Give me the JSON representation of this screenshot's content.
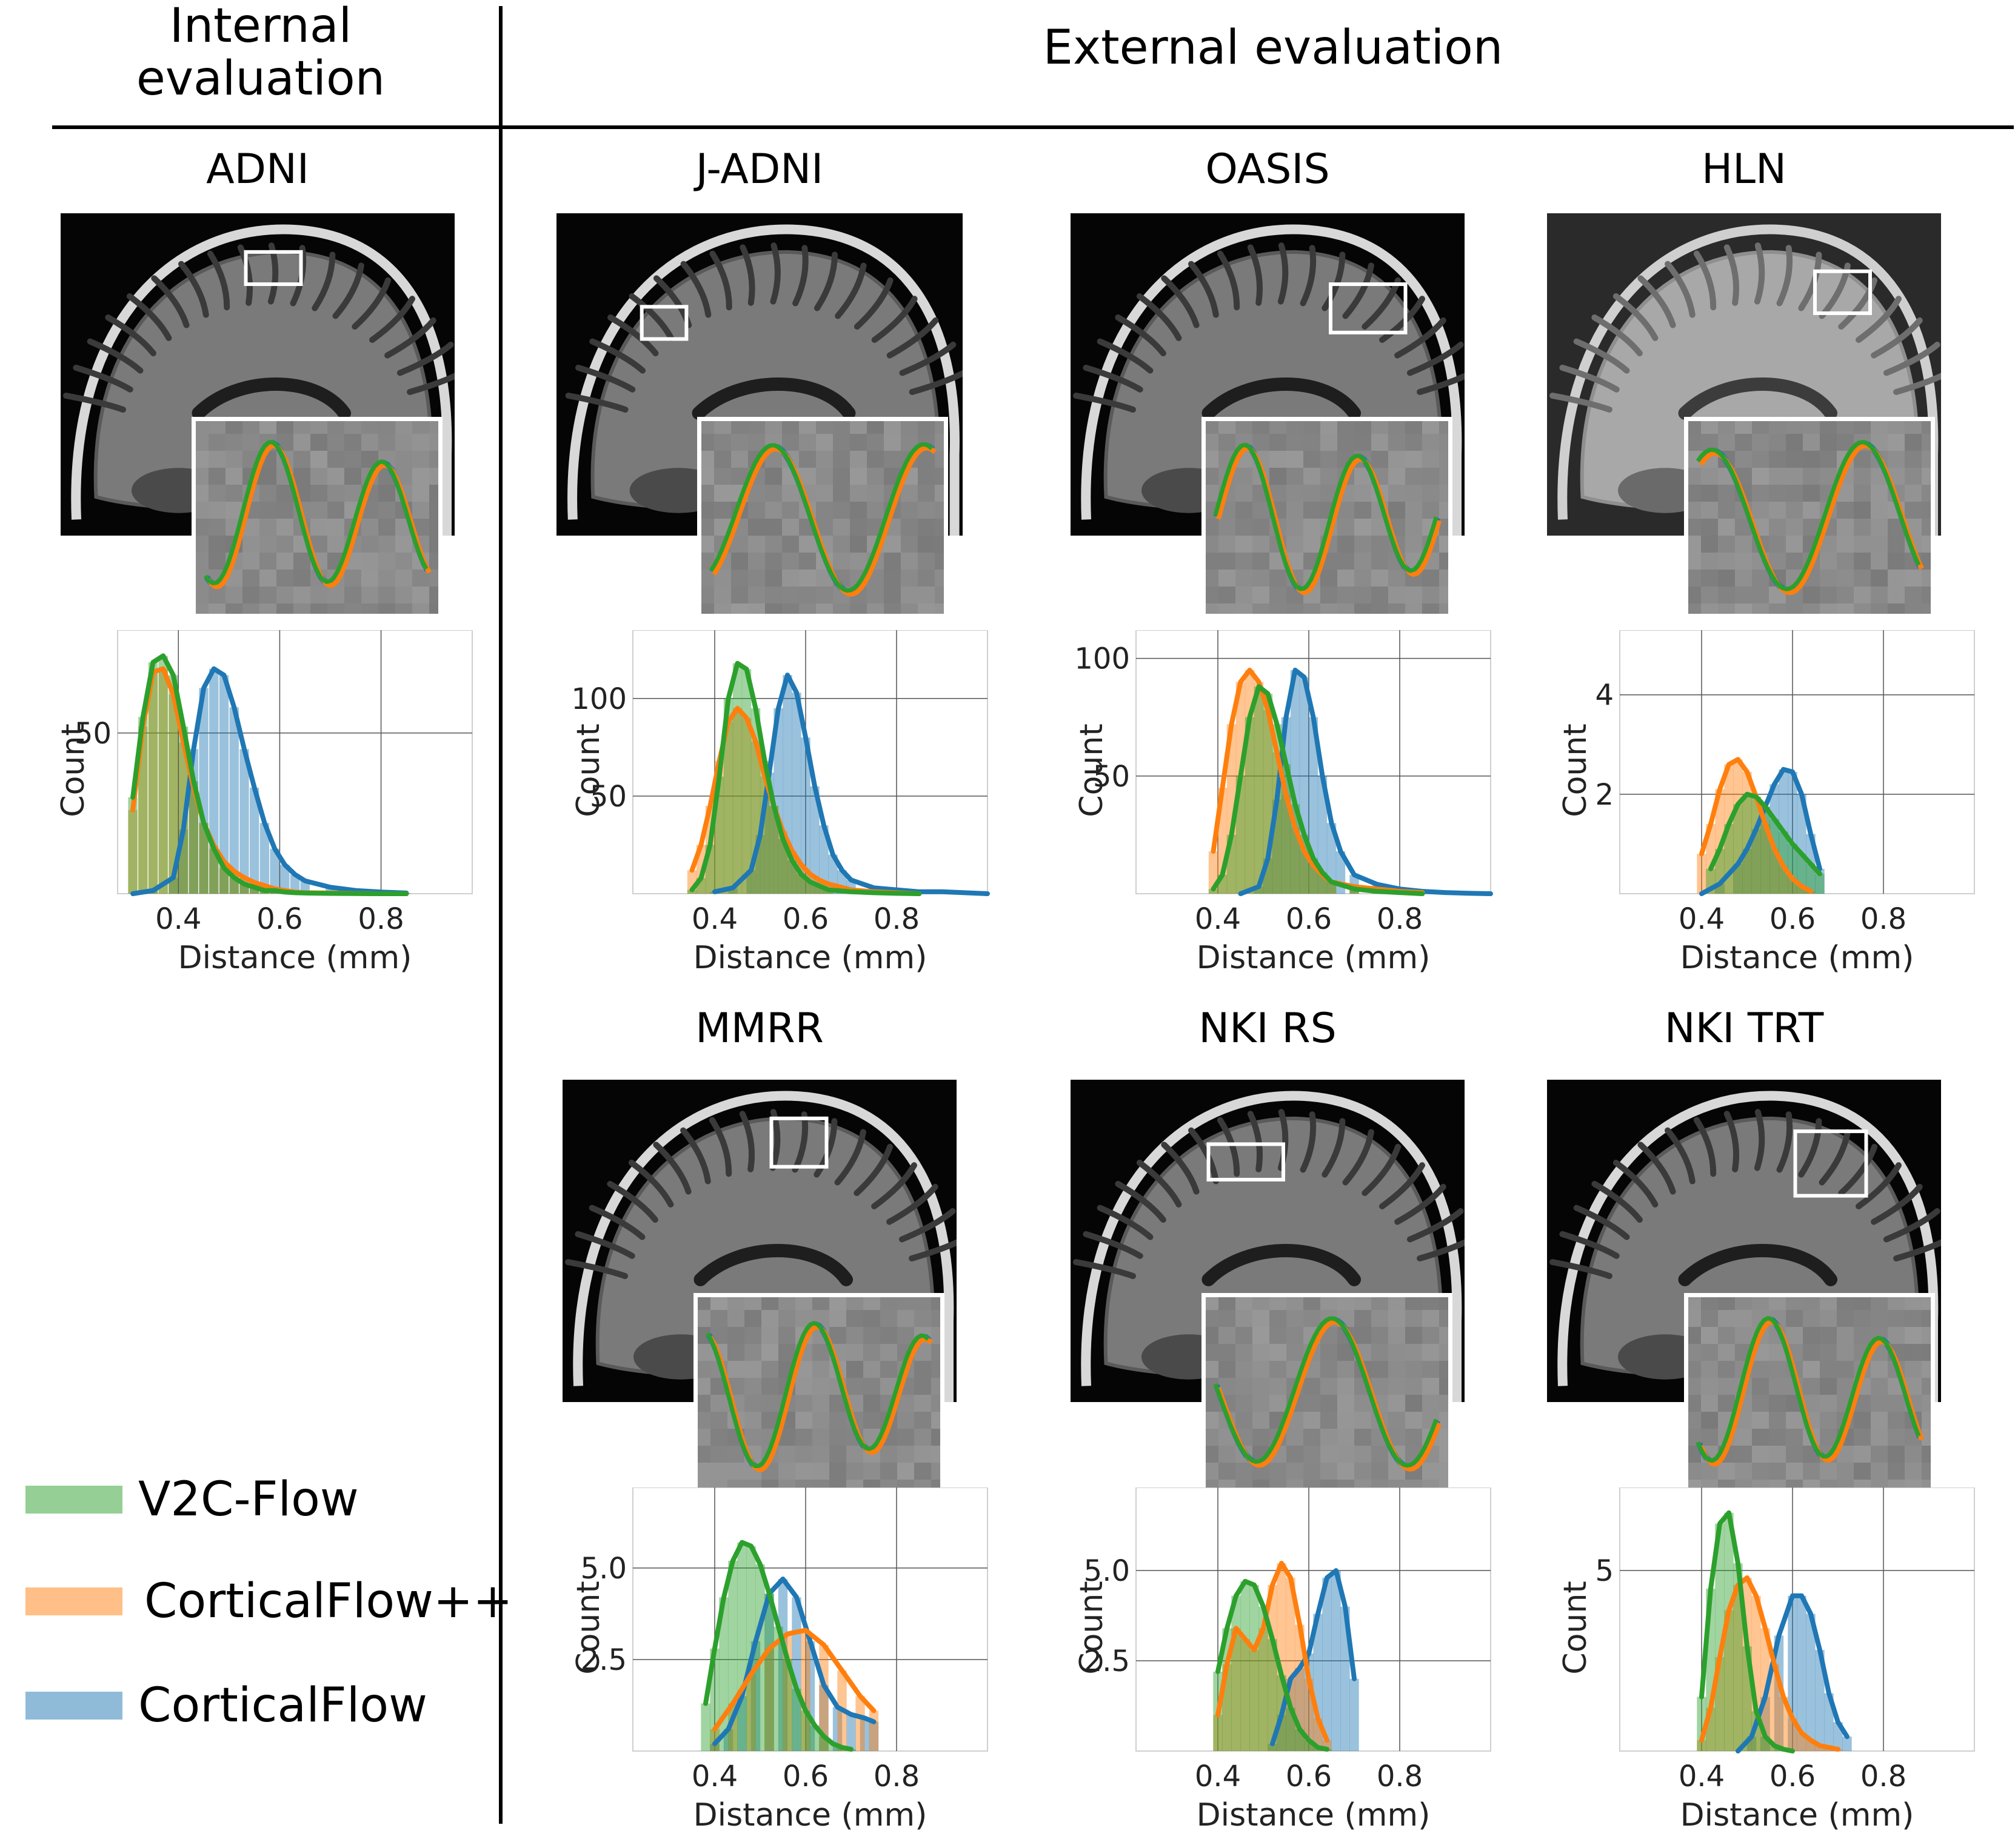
{
  "headers": {
    "internal": "Internal\nevaluation",
    "external": "External evaluation"
  },
  "legend": [
    {
      "name": "V2C-Flow",
      "color": "#2ca02c"
    },
    {
      "name": "CorticalFlow++",
      "color": "#ff7f0e"
    },
    {
      "name": "CorticalFlow",
      "color": "#1f77b4"
    }
  ],
  "chart_data": [
    {
      "type": "bar",
      "title": "ADNI",
      "xlabel": "Distance (mm)",
      "ylabel": "Count",
      "xlim": [
        0.28,
        0.98
      ],
      "ylim": [
        0,
        82
      ],
      "xticks": [
        0.4,
        0.6,
        0.8
      ],
      "yticks": [
        50
      ],
      "grid": true,
      "series": [
        {
          "name": "V2C-Flow",
          "x": [
            0.31,
            0.33,
            0.35,
            0.37,
            0.39,
            0.41,
            0.43,
            0.45,
            0.47,
            0.49,
            0.51,
            0.53,
            0.55,
            0.57,
            0.59,
            0.61,
            0.63,
            0.65,
            0.7,
            0.75,
            0.8,
            0.85
          ],
          "values": [
            30,
            55,
            72,
            74,
            68,
            52,
            35,
            22,
            14,
            8,
            5,
            3,
            2,
            1,
            1,
            0.5,
            0.3,
            0.2,
            0.1,
            0.05,
            0,
            0
          ]
        },
        {
          "name": "CorticalFlow++",
          "x": [
            0.31,
            0.33,
            0.35,
            0.37,
            0.39,
            0.41,
            0.43,
            0.45,
            0.47,
            0.49,
            0.51,
            0.53,
            0.55,
            0.57,
            0.59,
            0.61,
            0.63,
            0.65,
            0.7,
            0.75,
            0.8,
            0.85
          ],
          "values": [
            26,
            52,
            69,
            70,
            62,
            47,
            33,
            22,
            15,
            10,
            7,
            5,
            3.5,
            2.5,
            1.5,
            1,
            0.5,
            0.3,
            0.2,
            0.1,
            0,
            0
          ]
        },
        {
          "name": "CorticalFlow",
          "x": [
            0.31,
            0.35,
            0.39,
            0.41,
            0.43,
            0.45,
            0.47,
            0.49,
            0.51,
            0.53,
            0.55,
            0.57,
            0.59,
            0.61,
            0.63,
            0.65,
            0.7,
            0.75,
            0.8,
            0.85
          ],
          "values": [
            0,
            1,
            5,
            20,
            45,
            64,
            70,
            68,
            58,
            45,
            33,
            22,
            14,
            9,
            6,
            4,
            2,
            1,
            0.5,
            0.2
          ]
        }
      ]
    },
    {
      "type": "bar",
      "title": "J-ADNI",
      "xlabel": "Distance (mm)",
      "ylabel": "Count",
      "xlim": [
        0.22,
        1.0
      ],
      "ylim": [
        0,
        135
      ],
      "xticks": [
        0.4,
        0.6,
        0.8
      ],
      "yticks": [
        50,
        100
      ],
      "grid": true,
      "series": [
        {
          "name": "V2C-Flow",
          "x": [
            0.35,
            0.37,
            0.39,
            0.41,
            0.43,
            0.45,
            0.47,
            0.49,
            0.51,
            0.53,
            0.55,
            0.57,
            0.59,
            0.61,
            0.63,
            0.65,
            0.7,
            0.75,
            0.8,
            0.85
          ],
          "values": [
            2,
            8,
            25,
            60,
            100,
            118,
            115,
            95,
            68,
            45,
            28,
            17,
            10,
            6,
            4,
            2,
            1,
            0.5,
            0.2,
            0
          ]
        },
        {
          "name": "CorticalFlow++",
          "x": [
            0.35,
            0.37,
            0.39,
            0.41,
            0.43,
            0.45,
            0.47,
            0.49,
            0.51,
            0.53,
            0.55,
            0.57,
            0.59,
            0.61,
            0.63,
            0.65,
            0.7,
            0.75,
            0.8,
            0.85
          ],
          "values": [
            12,
            25,
            45,
            68,
            88,
            95,
            90,
            78,
            60,
            45,
            32,
            22,
            15,
            10,
            7,
            5,
            2,
            1,
            0.5,
            0
          ]
        },
        {
          "name": "CorticalFlow",
          "x": [
            0.4,
            0.44,
            0.48,
            0.5,
            0.52,
            0.54,
            0.56,
            0.58,
            0.6,
            0.62,
            0.64,
            0.66,
            0.68,
            0.7,
            0.75,
            0.8,
            0.85,
            0.9,
            0.95,
            1.0
          ],
          "values": [
            1,
            3,
            12,
            30,
            62,
            95,
            112,
            103,
            80,
            55,
            35,
            20,
            12,
            7,
            3,
            2,
            1,
            1,
            0.5,
            0
          ]
        }
      ]
    },
    {
      "type": "bar",
      "title": "OASIS",
      "xlabel": "Distance (mm)",
      "ylabel": "Count",
      "xlim": [
        0.22,
        1.0
      ],
      "ylim": [
        0,
        112
      ],
      "xticks": [
        0.4,
        0.6,
        0.8
      ],
      "yticks": [
        50,
        100
      ],
      "grid": true,
      "series": [
        {
          "name": "V2C-Flow",
          "x": [
            0.39,
            0.41,
            0.43,
            0.45,
            0.47,
            0.49,
            0.51,
            0.53,
            0.55,
            0.57,
            0.59,
            0.61,
            0.63,
            0.65,
            0.7,
            0.75,
            0.8,
            0.85
          ],
          "values": [
            2,
            8,
            25,
            50,
            75,
            88,
            85,
            72,
            55,
            38,
            25,
            15,
            9,
            5,
            2,
            1,
            0.5,
            0
          ]
        },
        {
          "name": "CorticalFlow++",
          "x": [
            0.39,
            0.41,
            0.43,
            0.45,
            0.47,
            0.49,
            0.51,
            0.53,
            0.55,
            0.57,
            0.59,
            0.61,
            0.63,
            0.65,
            0.7,
            0.75,
            0.8,
            0.85
          ],
          "values": [
            18,
            45,
            72,
            90,
            95,
            90,
            78,
            60,
            42,
            28,
            18,
            12,
            8,
            5,
            3,
            2,
            1,
            0.5
          ]
        },
        {
          "name": "CorticalFlow",
          "x": [
            0.45,
            0.49,
            0.51,
            0.53,
            0.55,
            0.57,
            0.59,
            0.61,
            0.63,
            0.65,
            0.67,
            0.7,
            0.75,
            0.8,
            0.85,
            0.9,
            0.95,
            1.0
          ],
          "values": [
            0,
            3,
            15,
            40,
            75,
            95,
            92,
            75,
            50,
            30,
            18,
            8,
            4,
            2,
            1,
            0.5,
            0.2,
            0
          ]
        }
      ]
    },
    {
      "type": "bar",
      "title": "HLN",
      "xlabel": "Distance (mm)",
      "ylabel": "Count",
      "xlim": [
        0.22,
        1.0
      ],
      "ylim": [
        0,
        5.3
      ],
      "xticks": [
        0.4,
        0.6,
        0.8
      ],
      "yticks": [
        2,
        4
      ],
      "grid": true,
      "series": [
        {
          "name": "V2C-Flow",
          "x": [
            0.42,
            0.44,
            0.46,
            0.48,
            0.5,
            0.52,
            0.54,
            0.56,
            0.58,
            0.6,
            0.62,
            0.64,
            0.66
          ],
          "values": [
            0.5,
            0.9,
            1.4,
            1.8,
            2.0,
            1.95,
            1.75,
            1.5,
            1.25,
            1.0,
            0.8,
            0.6,
            0.4
          ]
        },
        {
          "name": "CorticalFlow++",
          "x": [
            0.4,
            0.42,
            0.44,
            0.46,
            0.48,
            0.5,
            0.52,
            0.54,
            0.56,
            0.58,
            0.6,
            0.62,
            0.64
          ],
          "values": [
            0.8,
            1.4,
            2.1,
            2.6,
            2.7,
            2.45,
            1.95,
            1.4,
            0.9,
            0.55,
            0.3,
            0.15,
            0.05
          ]
        },
        {
          "name": "CorticalFlow",
          "x": [
            0.4,
            0.44,
            0.48,
            0.5,
            0.52,
            0.54,
            0.56,
            0.58,
            0.6,
            0.62,
            0.64,
            0.66
          ],
          "values": [
            0,
            0.2,
            0.6,
            0.9,
            1.3,
            1.75,
            2.2,
            2.5,
            2.45,
            2.0,
            1.2,
            0.5
          ]
        }
      ]
    },
    {
      "type": "bar",
      "title": "MMRR",
      "xlabel": "Distance (mm)",
      "ylabel": "Count",
      "xlim": [
        0.22,
        1.0
      ],
      "ylim": [
        0,
        7.2
      ],
      "xticks": [
        0.4,
        0.6,
        0.8
      ],
      "yticks": [
        2.5,
        5.0
      ],
      "grid": true,
      "series": [
        {
          "name": "V2C-Flow",
          "x": [
            0.38,
            0.4,
            0.42,
            0.44,
            0.46,
            0.48,
            0.5,
            0.52,
            0.54,
            0.56,
            0.58,
            0.6,
            0.62,
            0.64,
            0.66,
            0.68,
            0.7
          ],
          "values": [
            1.3,
            2.8,
            4.2,
            5.2,
            5.7,
            5.6,
            5.1,
            4.3,
            3.4,
            2.5,
            1.7,
            1.1,
            0.7,
            0.4,
            0.2,
            0.1,
            0.05
          ]
        },
        {
          "name": "CorticalFlow++",
          "x": [
            0.4,
            0.44,
            0.48,
            0.52,
            0.56,
            0.6,
            0.64,
            0.68,
            0.72,
            0.75
          ],
          "values": [
            0.6,
            1.3,
            2.1,
            2.8,
            3.2,
            3.3,
            2.9,
            2.2,
            1.5,
            1.1
          ]
        },
        {
          "name": "CorticalFlow",
          "x": [
            0.4,
            0.43,
            0.46,
            0.49,
            0.52,
            0.55,
            0.58,
            0.61,
            0.64,
            0.67,
            0.7,
            0.73,
            0.75
          ],
          "values": [
            0.2,
            0.6,
            1.5,
            3.0,
            4.3,
            4.7,
            4.2,
            3.0,
            1.8,
            1.2,
            1.0,
            0.9,
            0.8
          ]
        }
      ]
    },
    {
      "type": "bar",
      "title": "NKI RS",
      "xlabel": "Distance (mm)",
      "ylabel": "Count",
      "xlim": [
        0.22,
        1.0
      ],
      "ylim": [
        0,
        7.3
      ],
      "xticks": [
        0.4,
        0.6,
        0.8
      ],
      "yticks": [
        2.5,
        5.0
      ],
      "grid": true,
      "series": [
        {
          "name": "V2C-Flow",
          "x": [
            0.4,
            0.42,
            0.44,
            0.46,
            0.48,
            0.5,
            0.52,
            0.54,
            0.56,
            0.58,
            0.6,
            0.62,
            0.64
          ],
          "values": [
            2.2,
            3.4,
            4.3,
            4.7,
            4.6,
            4.0,
            3.1,
            2.1,
            1.2,
            0.6,
            0.3,
            0.1,
            0.05
          ]
        },
        {
          "name": "CorticalFlow++",
          "x": [
            0.4,
            0.42,
            0.44,
            0.46,
            0.48,
            0.5,
            0.52,
            0.54,
            0.56,
            0.58,
            0.6,
            0.62,
            0.64
          ],
          "values": [
            1.0,
            2.4,
            3.4,
            3.1,
            2.8,
            3.4,
            4.6,
            5.2,
            4.8,
            3.5,
            2.0,
            0.9,
            0.3
          ]
        },
        {
          "name": "CorticalFlow",
          "x": [
            0.52,
            0.54,
            0.56,
            0.58,
            0.6,
            0.62,
            0.64,
            0.66,
            0.68,
            0.7
          ],
          "values": [
            0.2,
            1.0,
            2.0,
            2.3,
            2.7,
            3.8,
            4.8,
            5.0,
            4.0,
            2.0
          ]
        }
      ]
    },
    {
      "type": "bar",
      "title": "NKI TRT",
      "xlabel": "Distance (mm)",
      "ylabel": "Count",
      "xlim": [
        0.22,
        1.0
      ],
      "ylim": [
        0,
        7.3
      ],
      "xticks": [
        0.4,
        0.6,
        0.8
      ],
      "yticks": [
        5
      ],
      "grid": true,
      "series": [
        {
          "name": "V2C-Flow",
          "x": [
            0.4,
            0.42,
            0.44,
            0.46,
            0.48,
            0.5,
            0.52,
            0.54,
            0.56,
            0.58,
            0.6
          ],
          "values": [
            1.5,
            4.5,
            6.3,
            6.6,
            5.2,
            2.9,
            1.1,
            0.4,
            0.15,
            0.05,
            0
          ]
        },
        {
          "name": "CorticalFlow++",
          "x": [
            0.4,
            0.42,
            0.44,
            0.46,
            0.48,
            0.5,
            0.52,
            0.54,
            0.56,
            0.58,
            0.6,
            0.62,
            0.64,
            0.66,
            0.68,
            0.7
          ],
          "values": [
            0.3,
            1.2,
            2.6,
            3.9,
            4.6,
            4.8,
            4.3,
            3.4,
            2.4,
            1.5,
            0.9,
            0.5,
            0.3,
            0.15,
            0.1,
            0.05
          ]
        },
        {
          "name": "CorticalFlow",
          "x": [
            0.48,
            0.51,
            0.54,
            0.57,
            0.6,
            0.62,
            0.64,
            0.66,
            0.68,
            0.7,
            0.72
          ],
          "values": [
            0,
            0.4,
            1.5,
            3.2,
            4.3,
            4.3,
            3.8,
            2.8,
            1.6,
            0.8,
            0.4
          ]
        }
      ]
    }
  ],
  "images": [
    {
      "title": "ADNI",
      "brain_style": "dark",
      "roi": [
        0.47,
        0.12,
        0.14,
        0.1
      ],
      "zoom_style": "adni"
    },
    {
      "title": "J-ADNI",
      "brain_style": "dark",
      "roi": [
        0.21,
        0.29,
        0.11,
        0.1
      ],
      "zoom_style": "jadni"
    },
    {
      "title": "OASIS",
      "brain_style": "dark",
      "roi": [
        0.66,
        0.22,
        0.19,
        0.15
      ],
      "zoom_style": "oasis"
    },
    {
      "title": "HLN",
      "brain_style": "light",
      "roi": [
        0.68,
        0.18,
        0.14,
        0.13
      ],
      "zoom_style": "hln"
    },
    {
      "title": "MMRR",
      "brain_style": "dark",
      "roi": [
        0.53,
        0.12,
        0.14,
        0.15
      ],
      "zoom_style": "mmrr"
    },
    {
      "title": "NKI RS",
      "brain_style": "dark",
      "roi": [
        0.35,
        0.2,
        0.19,
        0.11
      ],
      "zoom_style": "nkirs"
    },
    {
      "title": "NKI TRT",
      "brain_style": "dark",
      "roi": [
        0.63,
        0.16,
        0.18,
        0.2
      ],
      "zoom_style": "nkitrt"
    }
  ]
}
